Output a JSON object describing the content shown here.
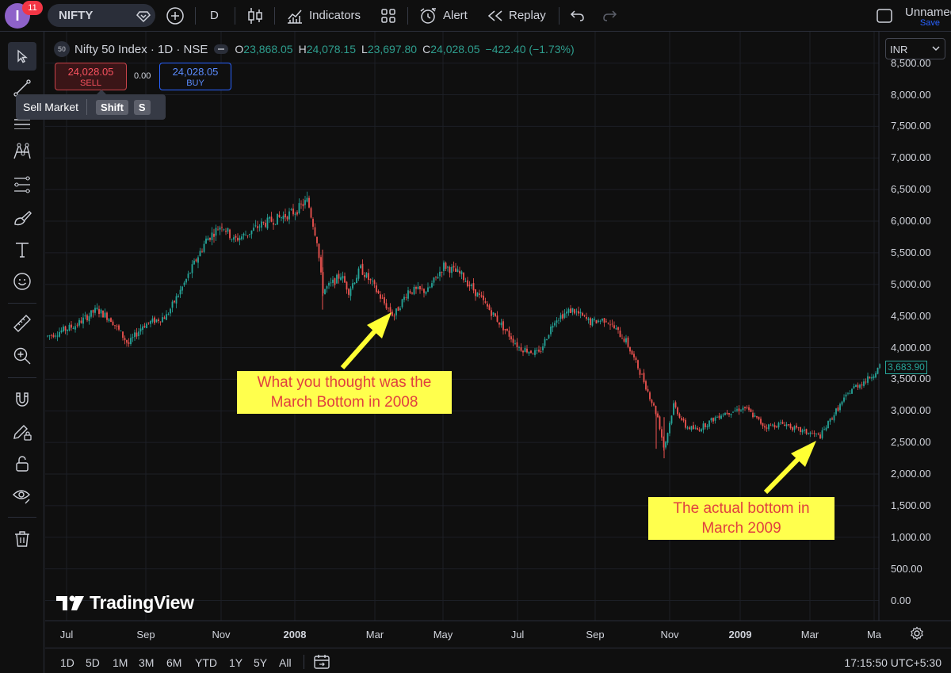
{
  "topbar": {
    "avatar_letter": "I",
    "notification_count": "11",
    "symbol": "NIFTY",
    "interval": "D",
    "indicators_label": "Indicators",
    "alert_label": "Alert",
    "replay_label": "Replay",
    "layout_name": "Unnamed",
    "save_label": "Save"
  },
  "legend": {
    "badge": "50",
    "title": "Nifty 50 Index · 1D · NSE",
    "open_key": "O",
    "open": "23,868.05",
    "high_key": "H",
    "high": "24,078.15",
    "low_key": "L",
    "low": "23,697.80",
    "close_key": "C",
    "close": "24,028.05",
    "change": "−422.40 (−1.73%)"
  },
  "trade": {
    "sell_price": "24,028.05",
    "sell_label": "SELL",
    "spread": "0.00",
    "buy_price": "24,028.05",
    "buy_label": "BUY"
  },
  "tooltip": {
    "text": "Sell Market",
    "key1": "Shift",
    "key2": "S"
  },
  "currency": "INR",
  "price_axis": {
    "labels": [
      "8,500.00",
      "8,000.00",
      "7,500.00",
      "7,000.00",
      "6,500.00",
      "6,000.00",
      "5,500.00",
      "5,000.00",
      "4,500.00",
      "4,000.00",
      "3,500.00",
      "3,000.00",
      "2,500.00",
      "2,000.00",
      "1,500.00",
      "1,000.00",
      "500.00",
      "0.00"
    ],
    "last_price": "3,683.90"
  },
  "time_axis": [
    "Jul",
    "Sep",
    "Nov",
    "2008",
    "Mar",
    "May",
    "Jul",
    "Sep",
    "Nov",
    "2009",
    "Mar",
    "Ma"
  ],
  "annotations": {
    "first": {
      "line1": "What you thought was the",
      "line2": "March Bottom in 2008"
    },
    "second": {
      "line1": "The actual bottom in",
      "line2": "March 2009"
    }
  },
  "logo": "TradingView",
  "ranges": [
    "1D",
    "5D",
    "1M",
    "3M",
    "6M",
    "YTD",
    "1Y",
    "5Y",
    "All"
  ],
  "clock": "17:15:50 UTC+5:30",
  "colors": {
    "up": "#26a69a",
    "down": "#ef5350",
    "note_bg": "#ffff4d",
    "note_text": "#e0403f"
  },
  "chart_data": {
    "type": "candlestick",
    "x": [
      "2007-06",
      "2007-07",
      "2007-08",
      "2007-09",
      "2007-10",
      "2007-11",
      "2007-12",
      "2008-01",
      "2008-02",
      "2008-03",
      "2008-04",
      "2008-05",
      "2008-06",
      "2008-07",
      "2008-08",
      "2008-09",
      "2008-10",
      "2008-11",
      "2008-12",
      "2009-01",
      "2009-02",
      "2009-03",
      "2009-04",
      "2009-05"
    ],
    "close": [
      4180,
      4450,
      4600,
      4100,
      4500,
      5900,
      5800,
      6200,
      5150,
      4650,
      4870,
      5200,
      4500,
      3950,
      4450,
      4350,
      3600,
      2700,
      2800,
      3000,
      2850,
      2700,
      3300,
      3684
    ],
    "ylim": [
      0,
      8500
    ]
  }
}
